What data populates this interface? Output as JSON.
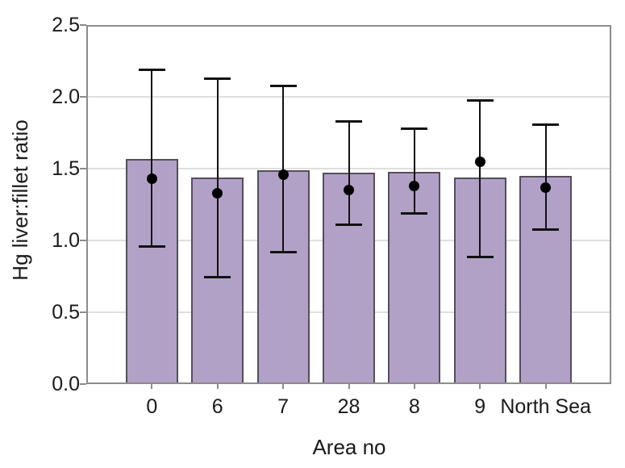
{
  "chart_data": {
    "type": "bar",
    "title": "",
    "xlabel": "Area no",
    "ylabel": "Hg liver:fillet ratio",
    "categories": [
      "0",
      "6",
      "7",
      "28",
      "8",
      "9",
      "North Sea"
    ],
    "series": [
      {
        "name": "bar",
        "type": "bar",
        "values": [
          1.57,
          1.44,
          1.49,
          1.47,
          1.48,
          1.44,
          1.45
        ]
      },
      {
        "name": "mean-point",
        "type": "scatter",
        "marker": "filled-circle",
        "values": [
          1.43,
          1.33,
          1.46,
          1.35,
          1.38,
          1.55,
          1.37
        ]
      }
    ],
    "error_bars": {
      "upper": [
        2.19,
        2.13,
        2.08,
        1.83,
        1.78,
        1.98,
        1.81
      ],
      "lower": [
        0.96,
        0.75,
        0.92,
        1.11,
        1.19,
        0.89,
        1.08
      ]
    },
    "ylim": [
      0,
      2.5
    ],
    "yticks": [
      "0.0",
      "0.5",
      "1.0",
      "1.5",
      "2.0",
      "2.5"
    ],
    "grid": true,
    "legend": false,
    "colors": {
      "bar_fill": "#b2a1c7",
      "bar_border": "#544e5c",
      "error_and_dot": "#111111",
      "gridline": "#dfdfdf",
      "axis": "#8c8c8c",
      "text": "#1a1a1a",
      "background": "#ffffff"
    }
  }
}
